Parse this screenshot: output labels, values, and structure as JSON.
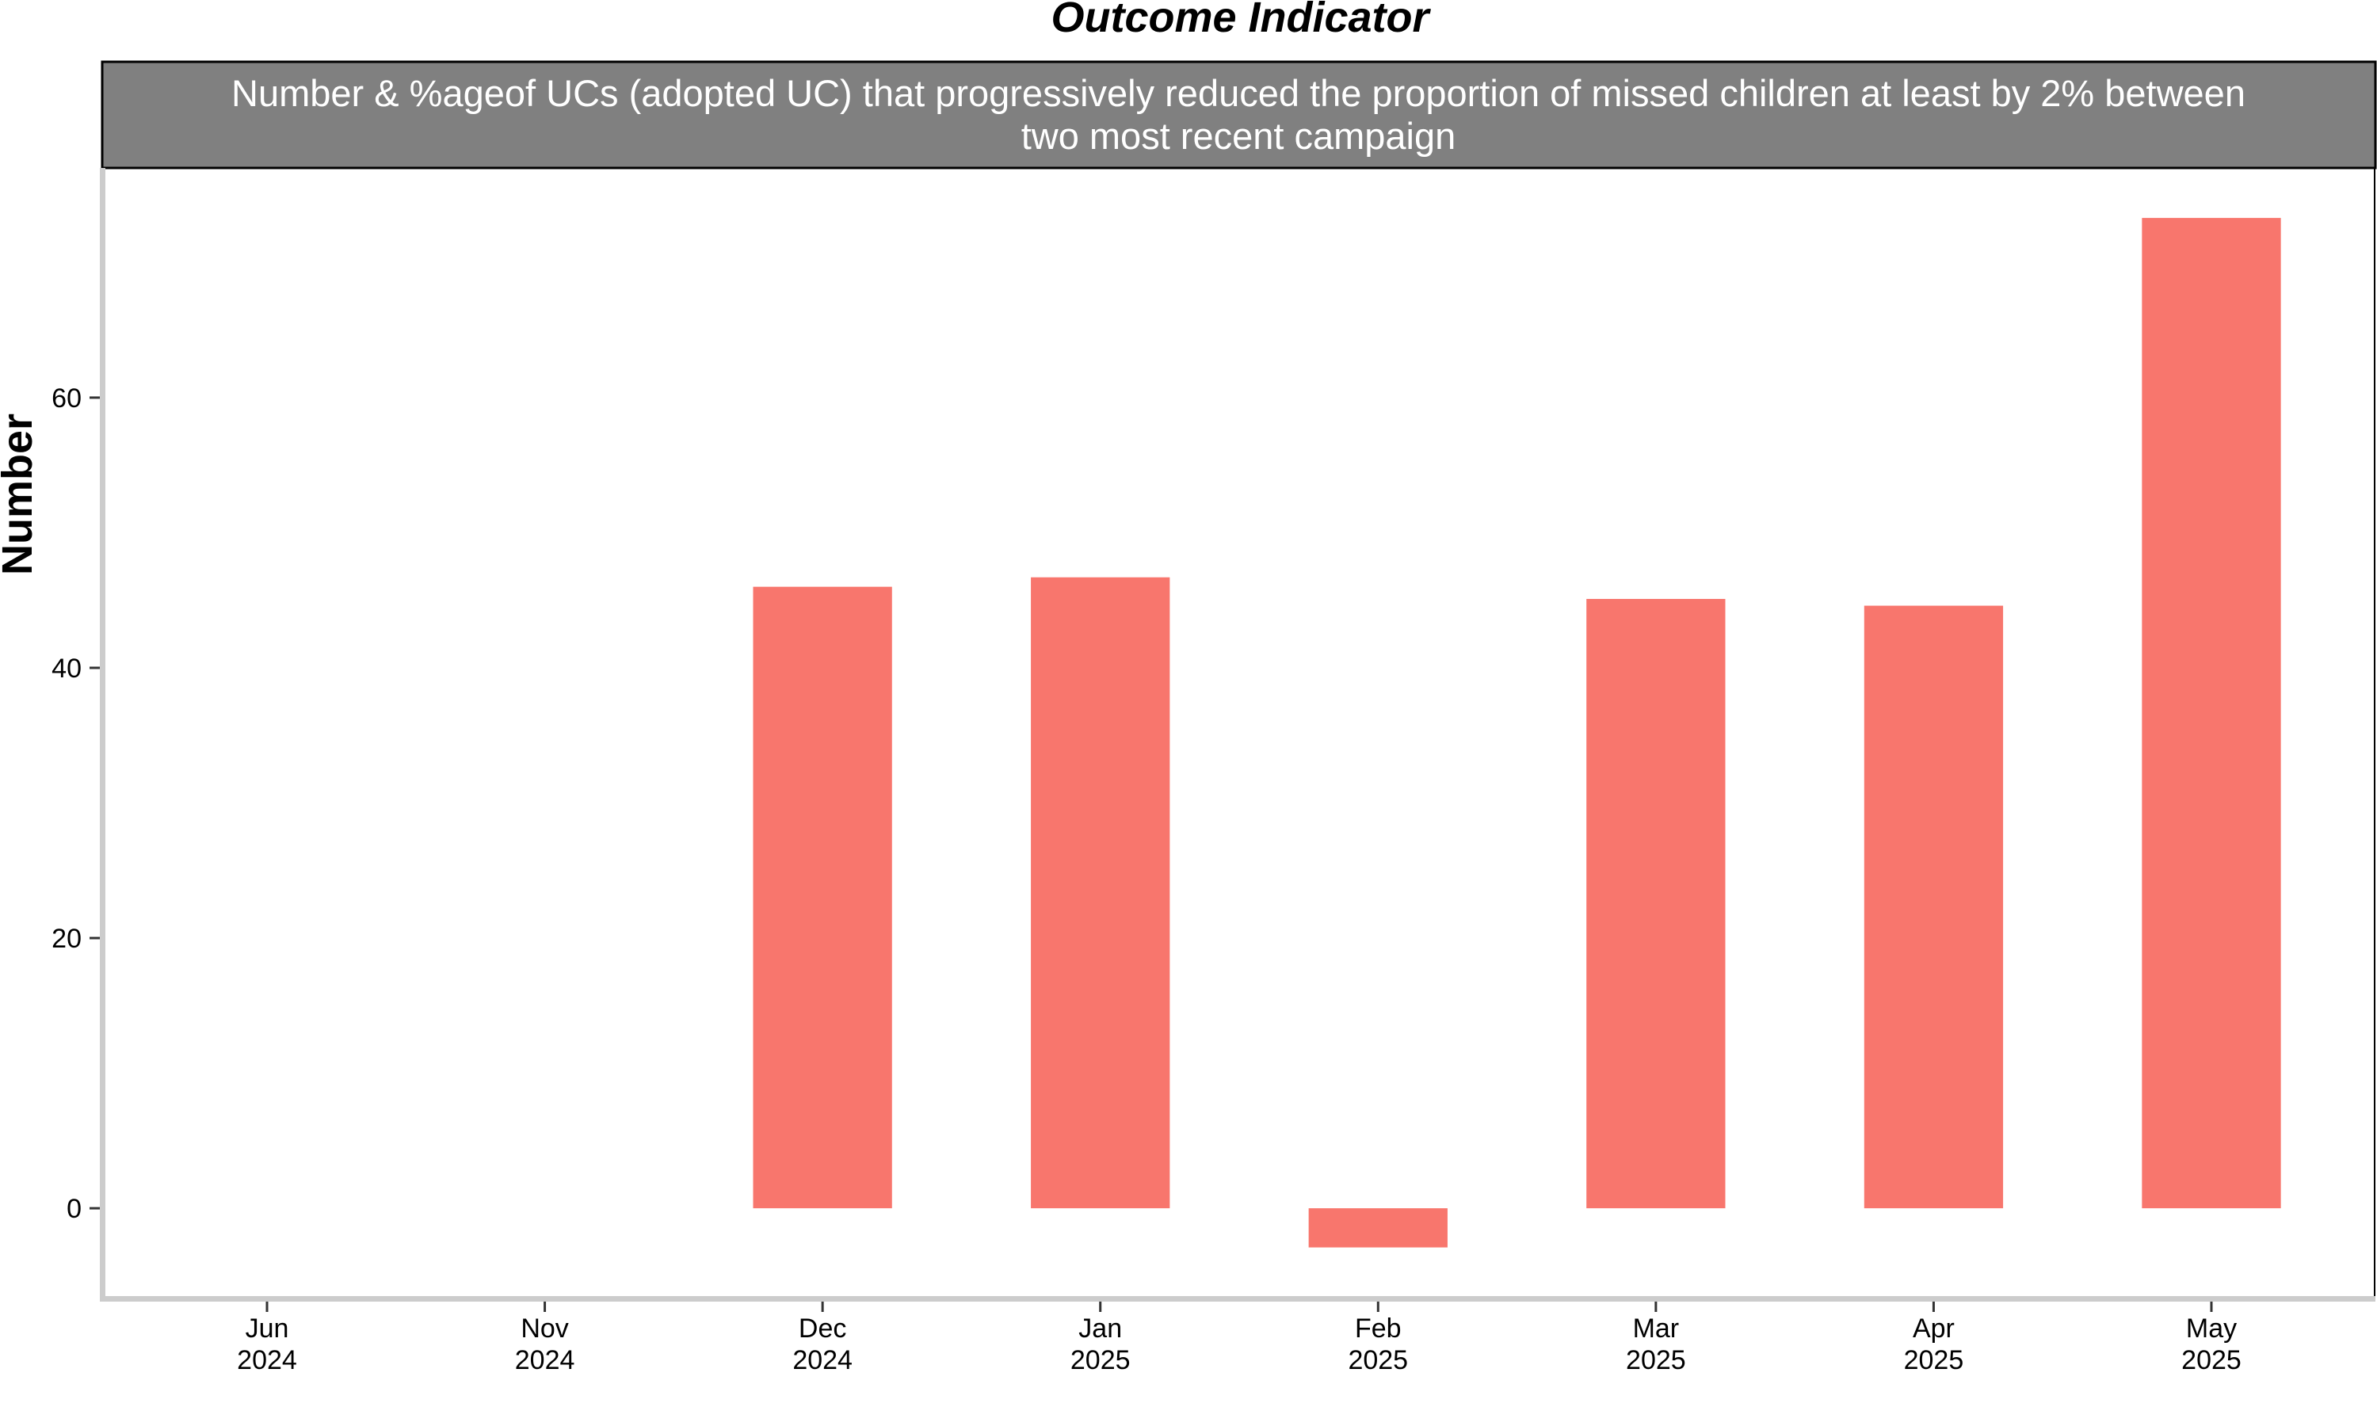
{
  "chart_data": {
    "type": "bar",
    "title": "Outcome Indicator",
    "panel_label_lines": [
      "Number & %ageof UCs (adopted UC) that progressively reduced the proportion of missed children at least by 2% between",
      "two most recent campaign"
    ],
    "ylabel": "Number",
    "xlabel": "",
    "categories": [
      {
        "month": "Jun",
        "year": "2024"
      },
      {
        "month": "Nov",
        "year": "2024"
      },
      {
        "month": "Dec",
        "year": "2024"
      },
      {
        "month": "Jan",
        "year": "2025"
      },
      {
        "month": "Feb",
        "year": "2025"
      },
      {
        "month": "Mar",
        "year": "2025"
      },
      {
        "month": "Apr",
        "year": "2025"
      },
      {
        "month": "May",
        "year": "2025"
      }
    ],
    "values": [
      null,
      null,
      46,
      46.7,
      -2.9,
      45.1,
      44.6,
      73.3
    ],
    "ylim": [
      -6.5,
      77
    ],
    "yticks": [
      0,
      20,
      40,
      60
    ],
    "bar_color": "#F8766D",
    "strip_color": "#808080",
    "axis_color": "#CCCCCC",
    "grid": false,
    "legend": "none"
  }
}
